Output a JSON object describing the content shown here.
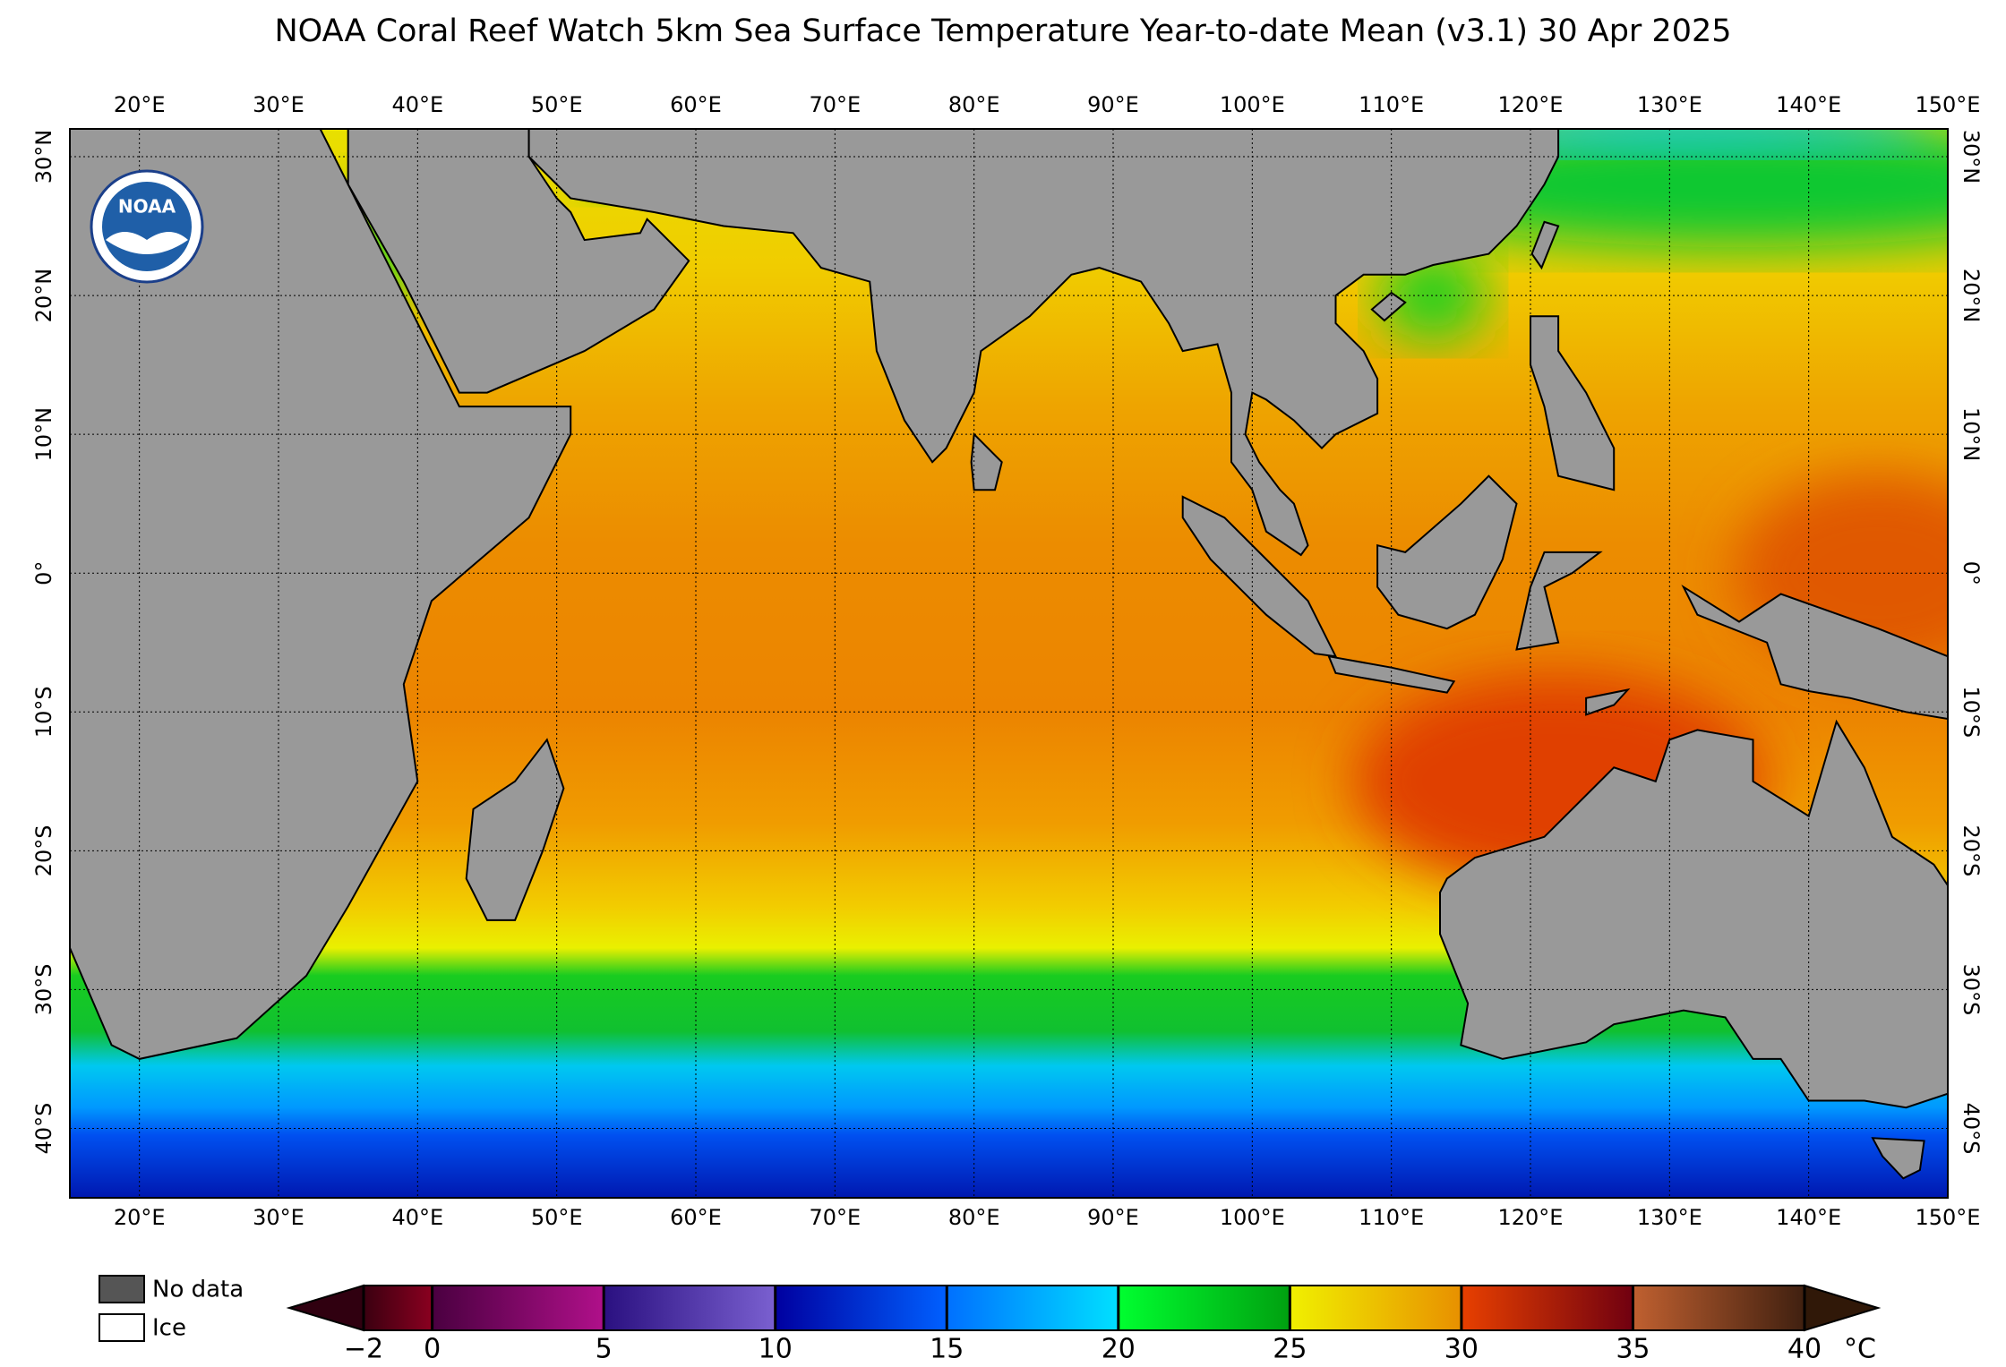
{
  "title": "NOAA Coral Reef Watch 5km Sea Surface Temperature Year-to-date Mean  (v3.1)   30 Apr 2025",
  "logo": "NOAA",
  "map": {
    "lonlim": [
      15,
      150
    ],
    "latlim": [
      -45,
      32
    ],
    "grid": true,
    "lon_ticks": [
      {
        "value": 20,
        "label": "20°E"
      },
      {
        "value": 30,
        "label": "30°E"
      },
      {
        "value": 40,
        "label": "40°E"
      },
      {
        "value": 50,
        "label": "50°E"
      },
      {
        "value": 60,
        "label": "60°E"
      },
      {
        "value": 70,
        "label": "70°E"
      },
      {
        "value": 80,
        "label": "80°E"
      },
      {
        "value": 90,
        "label": "90°E"
      },
      {
        "value": 100,
        "label": "100°E"
      },
      {
        "value": 110,
        "label": "110°E"
      },
      {
        "value": 120,
        "label": "120°E"
      },
      {
        "value": 130,
        "label": "130°E"
      },
      {
        "value": 140,
        "label": "140°E"
      },
      {
        "value": 150,
        "label": "150°E"
      }
    ],
    "lat_ticks": [
      {
        "value": 30,
        "label": "30°N"
      },
      {
        "value": 20,
        "label": "20°N"
      },
      {
        "value": 10,
        "label": "10°N"
      },
      {
        "value": 0,
        "label": "0°"
      },
      {
        "value": -10,
        "label": "10°S"
      },
      {
        "value": -20,
        "label": "20°S"
      },
      {
        "value": -30,
        "label": "30°S"
      },
      {
        "value": -40,
        "label": "40°S"
      }
    ]
  },
  "legend": {
    "no_data": "No data",
    "ice": "Ice"
  },
  "colorbar": {
    "range": [
      -2,
      40
    ],
    "ticks": [
      {
        "value": -2,
        "label": "−2"
      },
      0,
      5,
      10,
      15,
      20,
      25,
      30,
      35,
      40
    ],
    "unit": "°C"
  }
}
